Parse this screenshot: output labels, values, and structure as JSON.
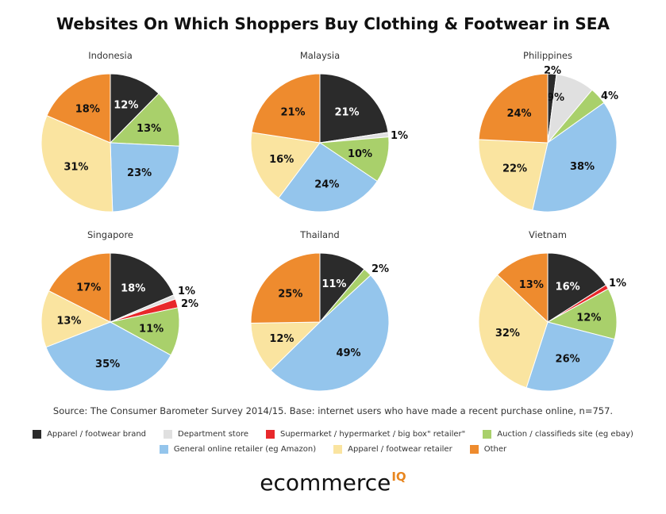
{
  "title": "Websites On Which Shoppers Buy Clothing & Footwear in SEA",
  "source": "Source: The Consumer Barometer Survey 2014/15. Base: internet users who have made a recent purchase online, n=757.",
  "legend": [
    {
      "label": "Apparel / footwear brand",
      "color": "#2b2b2b"
    },
    {
      "label": "Department store",
      "color": "#e0e0e0"
    },
    {
      "label": "Supermarket / hypermarket / big box\" retailer\"",
      "color": "#e8282b"
    },
    {
      "label": "Auction / classifieds site (eg ebay)",
      "color": "#a9d06b"
    },
    {
      "label": "General online retailer (eg Amazon)",
      "color": "#94c5ec"
    },
    {
      "label": "Apparel / footwear retailer",
      "color": "#fae4a0"
    },
    {
      "label": "Other",
      "color": "#ee8b2e"
    }
  ],
  "logo": {
    "main": "ecommerce",
    "superscript": "IQ"
  },
  "chart_data": [
    {
      "type": "pie",
      "title": "Indonesia",
      "categories": [
        "Apparel / footwear brand",
        "Department store",
        "Supermarket / hypermarket / big box\" retailer\"",
        "Auction / classifieds site (eg ebay)",
        "General online retailer (eg Amazon)",
        "Apparel / footwear retailer",
        "Other"
      ],
      "values": [
        12,
        0,
        0,
        13,
        23,
        31,
        18
      ],
      "labels": [
        "12%",
        "",
        "",
        "13%",
        "23%",
        "31%",
        "18%"
      ]
    },
    {
      "type": "pie",
      "title": "Malaysia",
      "categories": [
        "Apparel / footwear brand",
        "Department store",
        "Supermarket / hypermarket / big box\" retailer\"",
        "Auction / classifieds site (eg ebay)",
        "General online retailer (eg Amazon)",
        "Apparel / footwear retailer",
        "Other"
      ],
      "values": [
        21,
        1,
        0,
        10,
        24,
        16,
        21
      ],
      "labels": [
        "21%",
        "1%",
        "",
        "10%",
        "24%",
        "16%",
        "21%"
      ]
    },
    {
      "type": "pie",
      "title": "Philippines",
      "categories": [
        "Apparel / footwear brand",
        "Department store",
        "Supermarket / hypermarket / big box\" retailer\"",
        "Auction / classifieds site (eg ebay)",
        "General online retailer (eg Amazon)",
        "Apparel / footwear retailer",
        "Other"
      ],
      "values": [
        2,
        9,
        0,
        4,
        38,
        22,
        24
      ],
      "labels": [
        "2%",
        "9%",
        "",
        "4%",
        "38%",
        "22%",
        "24%"
      ]
    },
    {
      "type": "pie",
      "title": "Singapore",
      "categories": [
        "Apparel / footwear brand",
        "Department store",
        "Supermarket / hypermarket / big box\" retailer\"",
        "Auction / classifieds site (eg ebay)",
        "General online retailer (eg Amazon)",
        "Apparel / footwear retailer",
        "Other"
      ],
      "values": [
        18,
        1,
        2,
        11,
        35,
        13,
        17
      ],
      "labels": [
        "18%",
        "1%",
        "2%",
        "11%",
        "35%",
        "13%",
        "17%"
      ]
    },
    {
      "type": "pie",
      "title": "Thailand",
      "categories": [
        "Apparel / footwear brand",
        "Department store",
        "Supermarket / hypermarket / big box\" retailer\"",
        "Auction / classifieds site (eg ebay)",
        "General online retailer (eg Amazon)",
        "Apparel / footwear retailer",
        "Other"
      ],
      "values": [
        11,
        0,
        0,
        2,
        49,
        12,
        25
      ],
      "labels": [
        "11%",
        "",
        "",
        "2%",
        "49%",
        "12%",
        "25%"
      ]
    },
    {
      "type": "pie",
      "title": "Vietnam",
      "categories": [
        "Apparel / footwear brand",
        "Department store",
        "Supermarket / hypermarket / big box\" retailer\"",
        "Auction / classifieds site (eg ebay)",
        "General online retailer (eg Amazon)",
        "Apparel / footwear retailer",
        "Other"
      ],
      "values": [
        16,
        0,
        1,
        12,
        26,
        32,
        13
      ],
      "labels": [
        "16%",
        "",
        "1%",
        "12%",
        "26%",
        "32%",
        "13%"
      ]
    }
  ]
}
